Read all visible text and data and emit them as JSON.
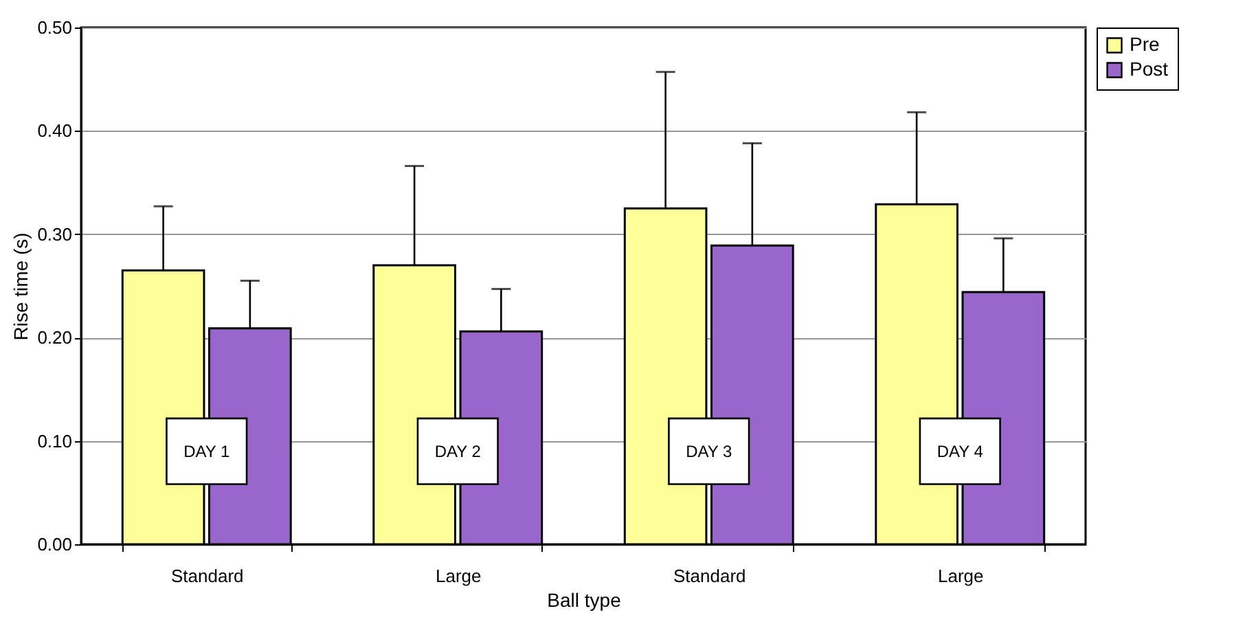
{
  "chart_data": {
    "type": "bar",
    "xlabel": "Ball type",
    "ylabel": "Rise time (s)",
    "categories": [
      "Standard",
      "Large",
      "Standard",
      "Large"
    ],
    "series": [
      {
        "name": "Pre",
        "color": "#ffff99",
        "values": [
          0.265,
          0.27,
          0.325,
          0.329
        ],
        "errors": [
          [
            0.265,
            0.327
          ],
          [
            0.27,
            0.366
          ],
          [
            0.325,
            0.457
          ],
          [
            0.329,
            0.418
          ]
        ]
      },
      {
        "name": "Post",
        "color": "#9966cc",
        "values": [
          0.209,
          0.206,
          0.289,
          0.244
        ],
        "errors": [
          [
            0.209,
            0.255
          ],
          [
            0.206,
            0.247
          ],
          [
            0.289,
            0.388
          ],
          [
            0.244,
            0.296
          ]
        ]
      }
    ],
    "annotations": [
      "DAY 1",
      "DAY 2",
      "DAY 3",
      "DAY 4"
    ],
    "ylim": [
      0,
      0.5
    ],
    "yticks": [
      {
        "value": 0,
        "label": "0.00"
      },
      {
        "value": 0.1,
        "label": "0.10"
      },
      {
        "value": 0.2,
        "label": "0.20"
      },
      {
        "value": 0.3,
        "label": "0.30"
      },
      {
        "value": 0.4,
        "label": "0.40"
      },
      {
        "value": 0.5,
        "label": "0.50"
      }
    ],
    "grid": "y",
    "legend": "right"
  }
}
